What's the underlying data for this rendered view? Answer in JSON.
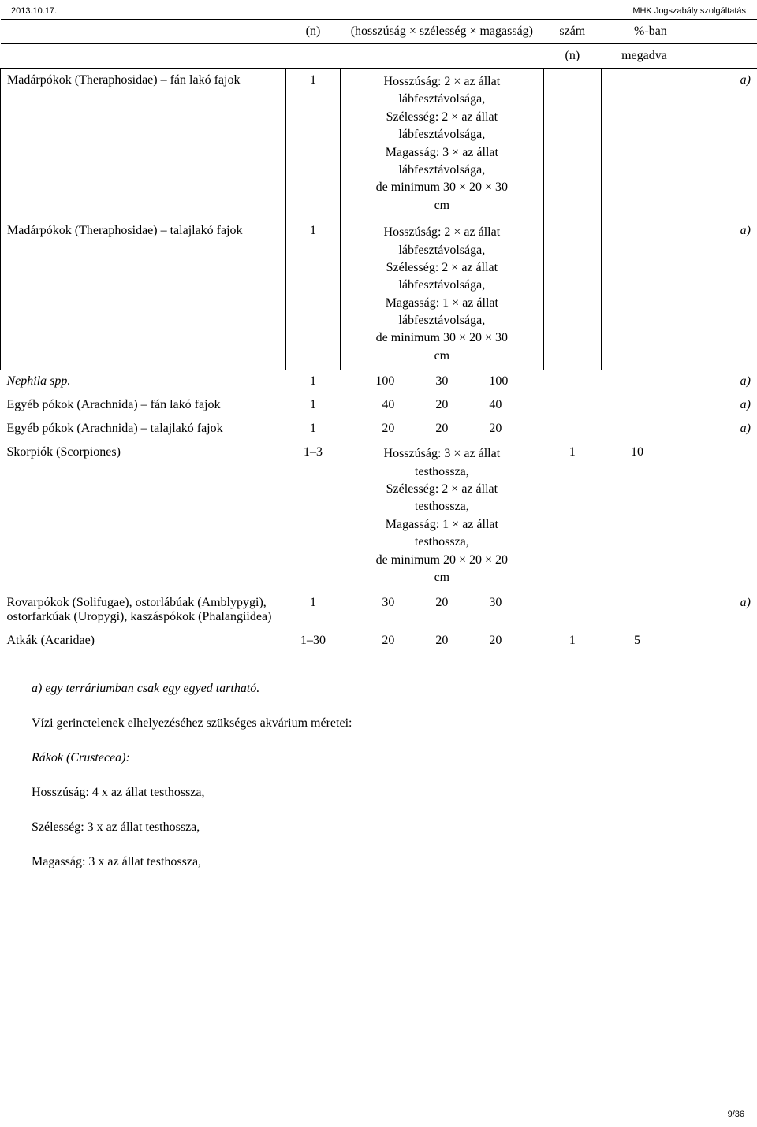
{
  "top": {
    "date": "2013.10.17.",
    "title": "MHK Jogszabály szolgáltatás"
  },
  "header": {
    "col2": "(n)",
    "col3": "(hosszúság × szélesség × magasság)",
    "col4": "szám",
    "col5a": "%-ban",
    "sub4": "(n)",
    "sub5": "megadva"
  },
  "rows": {
    "r1": {
      "name": "Madárpókok (Theraphosidae) – fán lakó fajok",
      "n": "1",
      "dims": "Hosszúság: 2 × az állat\nlábfesztávolsága,\nSzélesség: 2 × az állat\nlábfesztávolsága,\nMagasság: 3 × az állat\nlábfesztávolsága,\nde minimum 30 × 20 × 30\ncm",
      "note": "a)"
    },
    "r2": {
      "name": "Madárpókok (Theraphosidae) – talajlakó fajok",
      "n": "1",
      "dims": "Hosszúság: 2 × az állat\nlábfesztávolsága,\nSzélesség: 2 × az állat\nlábfesztávolsága,\nMagasság: 1 × az állat\nlábfesztávolsága,\nde minimum 30 × 20 × 30\ncm",
      "note": "a)"
    },
    "r3": {
      "name": "Nephila spp.",
      "n": "1",
      "d1": "100",
      "d2": "30",
      "d3": "100",
      "note": "a)"
    },
    "r4": {
      "name": "Egyéb pókok (Arachnida) – fán lakó fajok",
      "n": "1",
      "d1": "40",
      "d2": "20",
      "d3": "40",
      "note": "a)"
    },
    "r5": {
      "name": "Egyéb pókok (Arachnida) – talajlakó fajok",
      "n": "1",
      "d1": "20",
      "d2": "20",
      "d3": "20",
      "note": "a)"
    },
    "r6": {
      "name": "Skorpiók (Scorpiones)",
      "n": "1–3",
      "dims": "Hosszúság: 3 × az állat\ntesthossza,\nSzélesség: 2 × az állat\ntesthossza,\nMagasság: 1 × az állat\ntesthossza,\nde minimum 20 × 20 × 20\ncm",
      "x": "1",
      "y": "10"
    },
    "r7": {
      "name": "Rovarpókok (Solifugae), ostorlábúak (Amblypygi), ostorfarkúak (Uropygi), kaszáspókok (Phalangiidea)",
      "n": "1",
      "d1": "30",
      "d2": "20",
      "d3": "30",
      "note": "a)"
    },
    "r8": {
      "name": "Atkák (Acaridae)",
      "n": "1–30",
      "d1": "20",
      "d2": "20",
      "d3": "20",
      "x": "1",
      "y": "5"
    }
  },
  "notes": {
    "n1": "a) egy terráriumban csak egy egyed tartható.",
    "n2": "Vízi gerinctelenek elhelyezéséhez szükséges akvárium méretei:",
    "n3": "Rákok (Crustecea):",
    "n4": "Hosszúság: 4 x az állat testhossza,",
    "n5": "Szélesség: 3 x az állat testhossza,",
    "n6": "Magasság: 3 x az állat testhossza,"
  },
  "page": "9/36"
}
